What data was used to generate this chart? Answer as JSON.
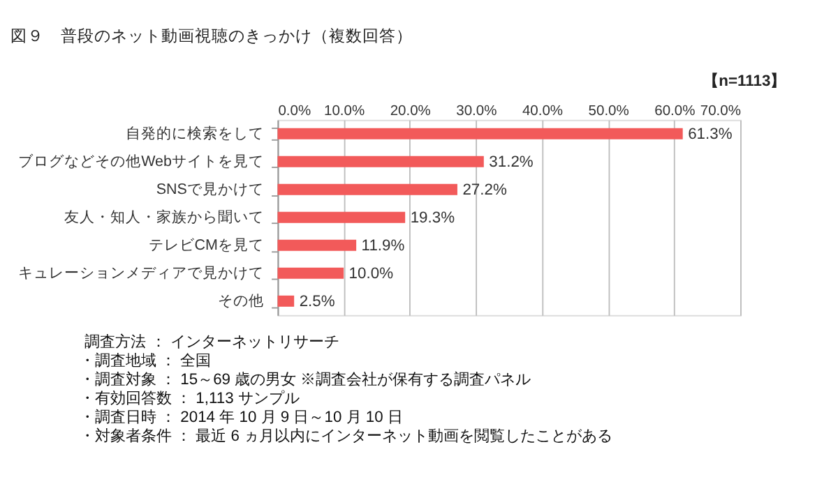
{
  "chart_data": {
    "type": "bar",
    "orientation": "horizontal",
    "title": "図９　普段のネット動画視聴のきっかけ（複数回答）",
    "categories": [
      "自発的に検索をして",
      "ブログなどその他Webサイトを見て",
      "SNSで見かけて",
      "友人・知人・家族から聞いて",
      "テレビCMを見て",
      "キュレーションメディアで見かけて",
      "その他"
    ],
    "values": [
      61.3,
      31.2,
      27.2,
      19.3,
      11.9,
      10.0,
      2.5
    ],
    "value_labels": [
      "61.3%",
      "31.2%",
      "27.2%",
      "19.3%",
      "11.9%",
      "10.0%",
      "2.5%"
    ],
    "color": "#f25a5a",
    "xlim": [
      0,
      70
    ],
    "xticks": [
      {
        "value": 0,
        "label": "0.0%"
      },
      {
        "value": 10,
        "label": "10.0%"
      },
      {
        "value": 20,
        "label": "20.0%"
      },
      {
        "value": 30,
        "label": "30.0%"
      },
      {
        "value": 40,
        "label": "40.0%"
      },
      {
        "value": 50,
        "label": "50.0%"
      },
      {
        "value": 60,
        "label": "60.0%"
      },
      {
        "value": 70,
        "label": "70.0%"
      }
    ],
    "grid": "x",
    "annotations": [
      "【n=1113】",
      "調査方法 ： インターネットリサーチ",
      "・調査地域 ： 全国",
      "・調査対象 ： 15～69 歳の男女 ※調査会社が保有する調査パネル",
      "・有効回答数 ： 1,113 サンプル",
      "・調査日時 ： 2014 年 10 月 9 日～10 月 10 日",
      "・対象者条件 ： 最近 6 ヵ月以内にインターネット動画を閲覧したことがある"
    ]
  }
}
